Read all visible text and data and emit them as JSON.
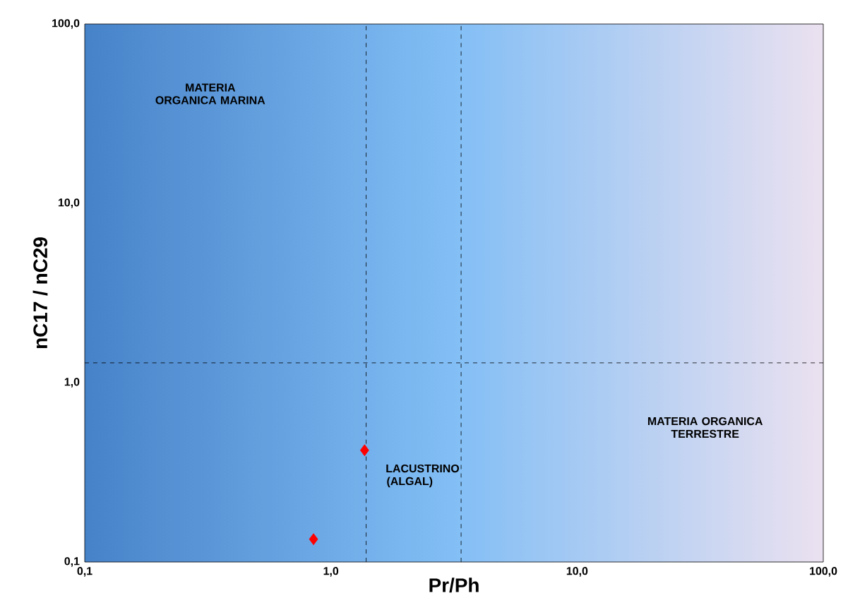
{
  "chart_data": {
    "type": "scatter",
    "xlabel": "Pr/Ph",
    "ylabel": "nC17 / nC29",
    "log": "xy",
    "xlim": [
      0.1,
      100
    ],
    "ylim": [
      0.1,
      100
    ],
    "xticks": [
      {
        "value": 0.1,
        "label": "0,1"
      },
      {
        "value": 1,
        "label": "1,0"
      },
      {
        "value": 10,
        "label": "10,0"
      },
      {
        "value": 100,
        "label": "100,0"
      }
    ],
    "yticks": [
      {
        "value": 0.1,
        "label": "0,1"
      },
      {
        "value": 1,
        "label": "1,0"
      },
      {
        "value": 10,
        "label": "10,0"
      },
      {
        "value": 100,
        "label": "100,0"
      }
    ],
    "series": [
      {
        "color": "#ff0000",
        "x": [
          1.37,
          0.85
        ],
        "values": [
          0.42,
          0.134
        ]
      }
    ],
    "marker": "diamond",
    "grid": false,
    "ref_lines": [
      {
        "axis": "x",
        "value": 1.39,
        "line_style": "dashed",
        "color": "#000000"
      },
      {
        "axis": "x",
        "value": 3.38,
        "line_style": "dashed",
        "color": "#000000"
      },
      {
        "axis": "y",
        "value": 1.29,
        "line_style": "dashed",
        "color": "#000000"
      }
    ],
    "annotations": [
      "MATERIA ORGANICA MARINA",
      "MATERIA ORGANICA TERRESTRE",
      "LACUSTRINO (ALGAL)"
    ]
  }
}
